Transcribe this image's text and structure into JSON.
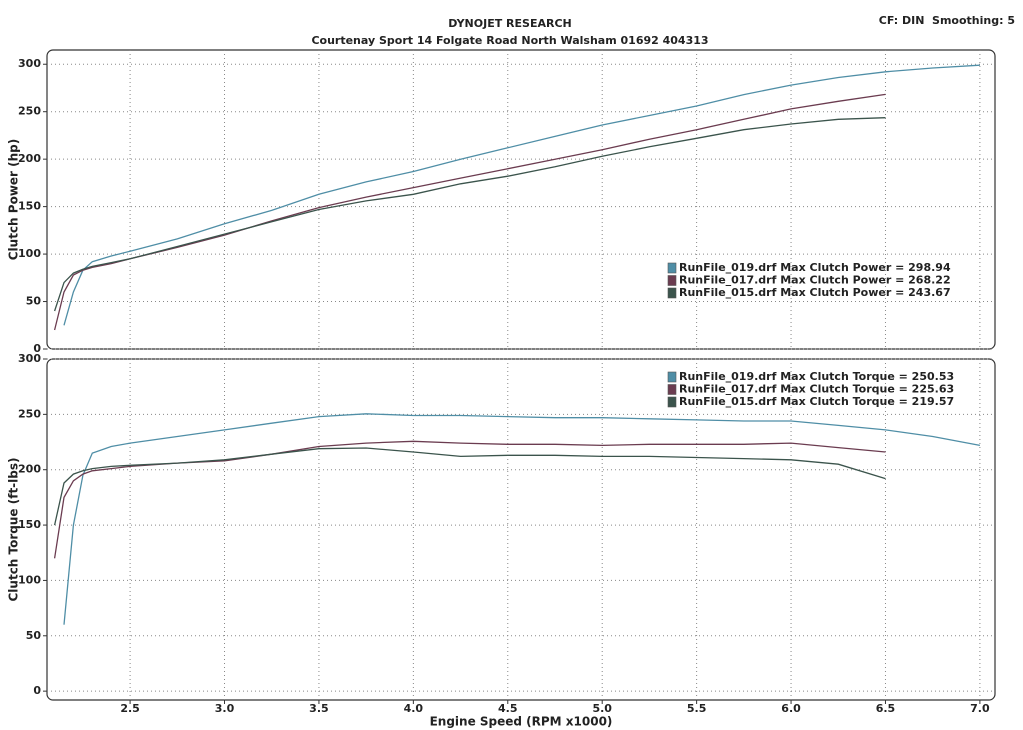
{
  "header": {
    "title": "DYNOJET RESEARCH",
    "subtitle": "Courtenay Sport 14 Folgate Road North Walsham 01692 404313",
    "settings": "CF: DIN  Smoothing: 5"
  },
  "chart_data": [
    {
      "type": "line",
      "ylabel": "Clutch Power (hp)",
      "legend": "lower right",
      "grid": true,
      "xlim": [
        2.06,
        7.08
      ],
      "ylim": [
        0,
        315
      ],
      "yticks": [
        0,
        50,
        100,
        150,
        200,
        250,
        300
      ],
      "x": [
        2.1,
        2.15,
        2.2,
        2.25,
        2.3,
        2.4,
        2.5,
        2.75,
        3.0,
        3.25,
        3.5,
        3.75,
        4.0,
        4.25,
        4.5,
        4.75,
        5.0,
        5.25,
        5.5,
        5.75,
        6.0,
        6.25,
        6.5,
        6.75,
        7.0
      ],
      "series": [
        {
          "name": "RunFile_019.drf Max Clutch Power = 298.94",
          "color": "#4f8ea6",
          "values": [
            null,
            25,
            60,
            83,
            92,
            98,
            103,
            116,
            132,
            146,
            163,
            176,
            187,
            200,
            212,
            224,
            236,
            246,
            256,
            268,
            278,
            286,
            292,
            296,
            298.94
          ]
        },
        {
          "name": "RunFile_017.drf Max Clutch Power = 268.22",
          "color": "#6b3c50",
          "values": [
            20,
            60,
            78,
            83,
            86,
            90,
            95,
            107,
            120,
            135,
            149,
            160,
            170,
            180,
            190,
            200,
            210,
            221,
            231,
            242,
            253,
            261,
            268.22,
            null,
            null
          ]
        },
        {
          "name": "RunFile_015.drf Max Clutch Power = 243.67",
          "color": "#3b544c",
          "values": [
            40,
            70,
            80,
            84,
            87,
            91,
            95,
            108,
            121,
            134,
            147,
            156,
            163,
            174,
            182,
            192,
            203,
            213,
            222,
            231,
            237,
            242,
            243.67,
            null,
            null
          ]
        }
      ]
    },
    {
      "type": "line",
      "ylabel": "Clutch Torque (ft-lbs)",
      "xlabel": "Engine Speed (RPM x1000)",
      "legend": "upper right",
      "grid": true,
      "xlim": [
        2.06,
        7.08
      ],
      "ylim": [
        -8,
        300
      ],
      "yticks": [
        0,
        50,
        100,
        150,
        200,
        250,
        300
      ],
      "xticks": [
        2.5,
        {
          "value": 3,
          "label": "3.0"
        },
        3.5,
        {
          "value": 4,
          "label": "4.0"
        },
        4.5,
        {
          "value": 5,
          "label": "5.0"
        },
        5.5,
        {
          "value": 6,
          "label": "6.0"
        },
        6.5,
        {
          "value": 7,
          "label": "7.0"
        }
      ],
      "x": [
        2.1,
        2.15,
        2.2,
        2.25,
        2.3,
        2.4,
        2.5,
        2.75,
        3.0,
        3.25,
        3.5,
        3.75,
        4.0,
        4.25,
        4.5,
        4.75,
        5.0,
        5.25,
        5.5,
        5.75,
        6.0,
        6.25,
        6.5,
        6.75,
        7.0
      ],
      "series": [
        {
          "name": "RunFile_019.drf Max Clutch Torque = 250.53",
          "color": "#4f8ea6",
          "values": [
            null,
            60,
            150,
            195,
            215,
            221,
            224,
            230,
            236,
            242,
            248,
            250.53,
            249,
            249,
            248,
            247,
            247,
            246,
            245,
            244,
            244,
            240,
            236,
            230,
            222
          ]
        },
        {
          "name": "RunFile_017.drf Max Clutch Torque = 225.63",
          "color": "#6b3c50",
          "values": [
            120,
            175,
            190,
            196,
            199,
            201,
            203,
            206,
            208,
            214,
            221,
            224,
            225.63,
            224,
            223,
            223,
            222,
            223,
            223,
            223,
            224,
            220,
            216,
            null,
            null
          ]
        },
        {
          "name": "RunFile_015.drf Max Clutch Torque = 219.57",
          "color": "#3b544c",
          "values": [
            150,
            188,
            196,
            199,
            201,
            203,
            204,
            206,
            209,
            214,
            219,
            219.57,
            216,
            212,
            213,
            213,
            212,
            212,
            211,
            210,
            209,
            205,
            192,
            null,
            null
          ]
        }
      ]
    }
  ]
}
